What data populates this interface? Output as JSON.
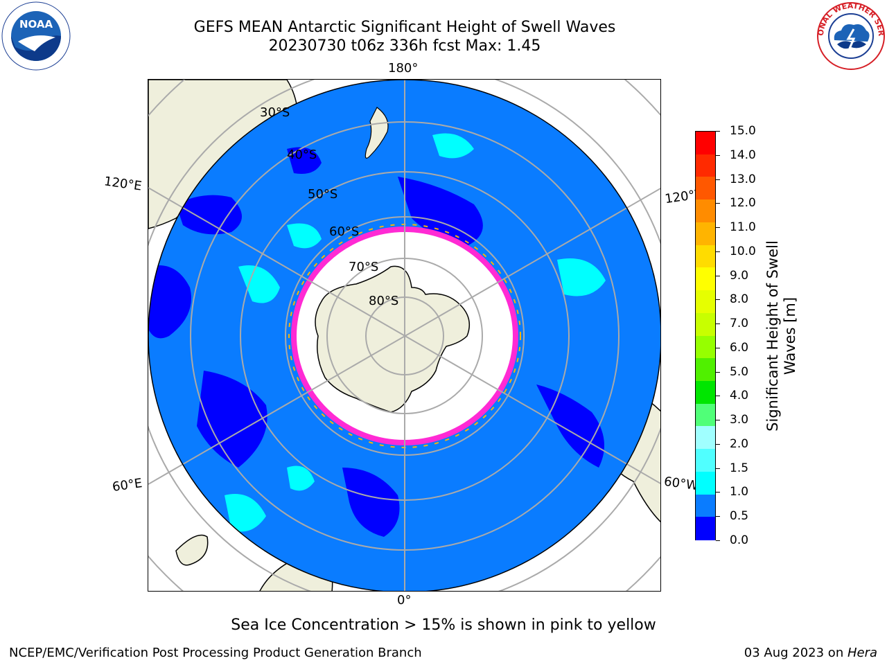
{
  "header": {
    "title_line1": "GEFS MEAN Antarctic Significant Height of Swell Waves",
    "title_line2": "20230730 t06z 336h fcst   Max: 1.45"
  },
  "logos": {
    "left": "NOAA",
    "right": "NATIONAL WEATHER SERVICE"
  },
  "map": {
    "projection": "south-polar-stereographic",
    "colors": {
      "ocean_swell": "#0a7cff",
      "low_swell": "#0000ff",
      "mid_swell": "#00ffff",
      "land": "#efefdc",
      "sea_ice": "#ffffff",
      "ice_edge": "#ff2ad4",
      "grid": "#aaaaaa"
    },
    "lon_labels": {
      "top": "180°",
      "bottom": "0°",
      "upper_left": "120°E",
      "lower_left": "60°E",
      "upper_right": "120°W",
      "lower_right": "60°W"
    },
    "lat_labels": [
      "30°S",
      "40°S",
      "50°S",
      "60°S",
      "70°S",
      "80°S"
    ]
  },
  "colorbar": {
    "label_line1": "Significant Height of Swell",
    "label_line2": "Waves [m]",
    "ticks": [
      "15.0",
      "14.0",
      "13.0",
      "12.0",
      "11.0",
      "10.0",
      "9.0",
      "8.0",
      "7.0",
      "6.0",
      "5.0",
      "4.0",
      "3.0",
      "2.0",
      "1.5",
      "1.0",
      "0.5",
      "0.0"
    ],
    "colors": [
      "#ff0000",
      "#ff2a00",
      "#ff5800",
      "#ff8c00",
      "#ffb400",
      "#ffdc00",
      "#ffff00",
      "#e6ff00",
      "#c8ff00",
      "#96ff00",
      "#50f000",
      "#00e600",
      "#50ff78",
      "#a0ffff",
      "#50ffff",
      "#00ffff",
      "#0a7cff",
      "#0000ff"
    ]
  },
  "footer": {
    "note": "Sea Ice Concentration > 15% is shown in pink to yellow",
    "credit": "NCEP/EMC/Verification Post Processing Product Generation Branch",
    "date": "03 Aug 2023 on ",
    "host": "Hera"
  }
}
